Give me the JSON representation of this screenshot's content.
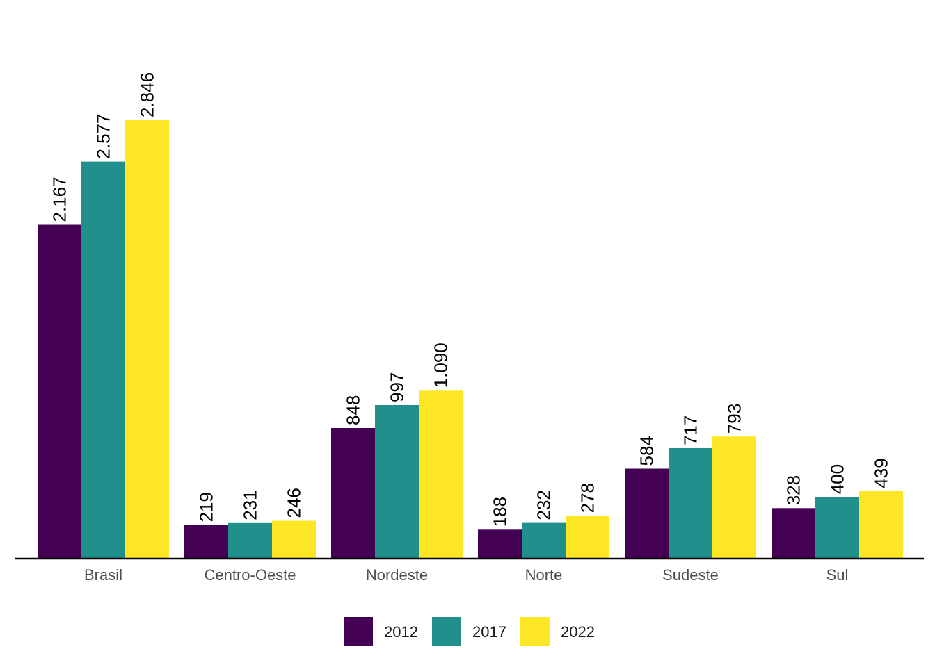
{
  "chart_data": {
    "type": "bar",
    "categories": [
      "Brasil",
      "Centro-Oeste",
      "Nordeste",
      "Norte",
      "Sudeste",
      "Sul"
    ],
    "series": [
      {
        "name": "2012",
        "color": "#440154",
        "values": [
          2167,
          219,
          848,
          188,
          584,
          328
        ],
        "labels": [
          "2.167",
          "219",
          "848",
          "188",
          "584",
          "328"
        ]
      },
      {
        "name": "2017",
        "color": "#21908C",
        "values": [
          2577,
          231,
          997,
          232,
          717,
          400
        ],
        "labels": [
          "2.577",
          "231",
          "997",
          "232",
          "717",
          "400"
        ]
      },
      {
        "name": "2022",
        "color": "#FDE725",
        "values": [
          2846,
          246,
          1090,
          278,
          793,
          439
        ],
        "labels": [
          "2.846",
          "246",
          "1.090",
          "278",
          "793",
          "439"
        ]
      }
    ],
    "title": "",
    "xlabel": "",
    "ylabel": "",
    "ylim": [
      0,
      3000
    ],
    "grid": false,
    "legend_position": "bottom"
  }
}
